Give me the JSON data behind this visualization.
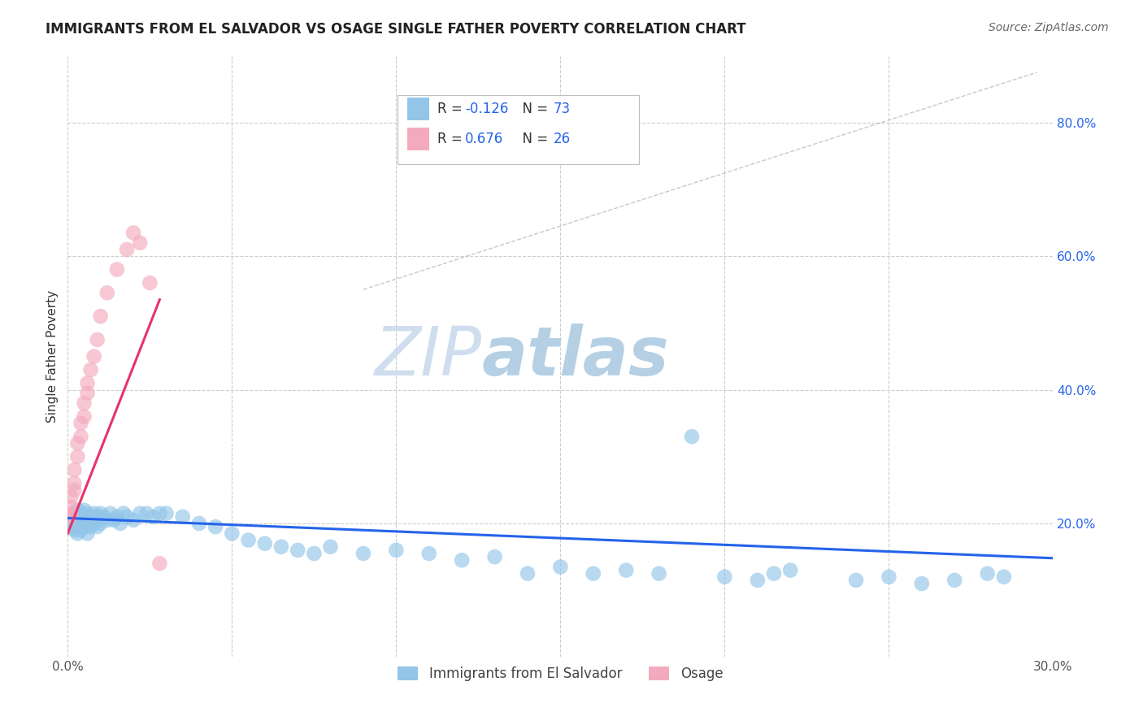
{
  "title": "IMMIGRANTS FROM EL SALVADOR VS OSAGE SINGLE FATHER POVERTY CORRELATION CHART",
  "source": "Source: ZipAtlas.com",
  "ylabel": "Single Father Poverty",
  "xlim": [
    0.0,
    0.3
  ],
  "ylim": [
    0.0,
    0.9
  ],
  "xticks": [
    0.0,
    0.05,
    0.1,
    0.15,
    0.2,
    0.25,
    0.3
  ],
  "xtick_labels": [
    "0.0%",
    "",
    "",
    "",
    "",
    "",
    "30.0%"
  ],
  "ytick_right_vals": [
    0.2,
    0.4,
    0.6,
    0.8
  ],
  "ytick_right_labels": [
    "20.0%",
    "40.0%",
    "60.0%",
    "80.0%"
  ],
  "ytick_grid_vals": [
    0.2,
    0.4,
    0.6,
    0.8
  ],
  "legend_labels": [
    "Immigrants from El Salvador",
    "Osage"
  ],
  "r_blue": -0.126,
  "n_blue": 73,
  "r_pink": 0.676,
  "n_pink": 26,
  "blue_color": "#92C5E8",
  "pink_color": "#F4AABE",
  "blue_line_color": "#2563EB",
  "pink_line_color": "#E8336A",
  "watermark_zip": "ZIP",
  "watermark_atlas": "atlas",
  "background_color": "#FFFFFF",
  "grid_color": "#CCCCCC",
  "blue_scatter_x": [
    0.001,
    0.001,
    0.001,
    0.002,
    0.002,
    0.002,
    0.002,
    0.003,
    0.003,
    0.003,
    0.003,
    0.004,
    0.004,
    0.004,
    0.005,
    0.005,
    0.005,
    0.006,
    0.006,
    0.006,
    0.007,
    0.007,
    0.008,
    0.008,
    0.009,
    0.009,
    0.01,
    0.01,
    0.011,
    0.012,
    0.013,
    0.014,
    0.015,
    0.016,
    0.017,
    0.018,
    0.02,
    0.022,
    0.024,
    0.026,
    0.028,
    0.03,
    0.035,
    0.04,
    0.045,
    0.05,
    0.055,
    0.06,
    0.065,
    0.07,
    0.075,
    0.08,
    0.09,
    0.1,
    0.11,
    0.12,
    0.13,
    0.14,
    0.15,
    0.16,
    0.17,
    0.18,
    0.19,
    0.2,
    0.21,
    0.215,
    0.22,
    0.24,
    0.25,
    0.26,
    0.27,
    0.28,
    0.285
  ],
  "blue_scatter_y": [
    0.195,
    0.2,
    0.21,
    0.19,
    0.195,
    0.205,
    0.215,
    0.185,
    0.195,
    0.21,
    0.22,
    0.19,
    0.2,
    0.215,
    0.195,
    0.205,
    0.22,
    0.185,
    0.2,
    0.215,
    0.195,
    0.21,
    0.2,
    0.215,
    0.195,
    0.21,
    0.2,
    0.215,
    0.21,
    0.205,
    0.215,
    0.205,
    0.21,
    0.2,
    0.215,
    0.21,
    0.205,
    0.215,
    0.215,
    0.21,
    0.215,
    0.215,
    0.21,
    0.2,
    0.195,
    0.185,
    0.175,
    0.17,
    0.165,
    0.16,
    0.155,
    0.165,
    0.155,
    0.16,
    0.155,
    0.145,
    0.15,
    0.125,
    0.135,
    0.125,
    0.13,
    0.125,
    0.33,
    0.12,
    0.115,
    0.125,
    0.13,
    0.115,
    0.12,
    0.11,
    0.115,
    0.125,
    0.12
  ],
  "pink_scatter_x": [
    0.0005,
    0.001,
    0.001,
    0.001,
    0.002,
    0.002,
    0.002,
    0.003,
    0.003,
    0.004,
    0.004,
    0.005,
    0.005,
    0.006,
    0.006,
    0.007,
    0.008,
    0.009,
    0.01,
    0.012,
    0.015,
    0.018,
    0.02,
    0.022,
    0.025,
    0.028
  ],
  "pink_scatter_y": [
    0.21,
    0.215,
    0.225,
    0.24,
    0.25,
    0.26,
    0.28,
    0.3,
    0.32,
    0.33,
    0.35,
    0.36,
    0.38,
    0.395,
    0.41,
    0.43,
    0.45,
    0.475,
    0.51,
    0.545,
    0.58,
    0.61,
    0.635,
    0.62,
    0.56,
    0.14
  ],
  "pink_line_x0": 0.0,
  "pink_line_y0": 0.185,
  "pink_line_x1": 0.028,
  "pink_line_y1": 0.535,
  "blue_line_x0": 0.0,
  "blue_line_y0": 0.208,
  "blue_line_x1": 0.3,
  "blue_line_y1": 0.148,
  "dash_line_x0": 0.09,
  "dash_line_y0": 0.55,
  "dash_line_x1": 0.295,
  "dash_line_y1": 0.875
}
